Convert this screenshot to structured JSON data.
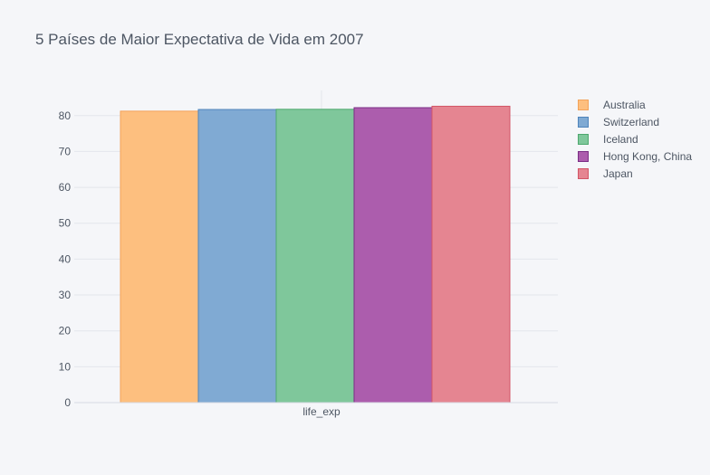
{
  "chart_data": {
    "type": "bar",
    "title": "5 Países de Maior Expectativa de Vida em 2007",
    "categories": [
      "life_exp"
    ],
    "series": [
      {
        "name": "Australia",
        "values": [
          81.235
        ],
        "fill": "#fdbf7f",
        "stroke": "#f3a35a"
      },
      {
        "name": "Switzerland",
        "values": [
          81.701
        ],
        "fill": "#80aad3",
        "stroke": "#4f84bb"
      },
      {
        "name": "Iceland",
        "values": [
          81.757
        ],
        "fill": "#7fc79b",
        "stroke": "#4ea86f"
      },
      {
        "name": "Hong Kong, China",
        "values": [
          82.208
        ],
        "fill": "#ac5dad",
        "stroke": "#7b2e85"
      },
      {
        "name": "Japan",
        "values": [
          82.603
        ],
        "fill": "#e58591",
        "stroke": "#d25566"
      }
    ],
    "ylim": [
      0,
      87
    ],
    "yticks": [
      "0",
      "10",
      "20",
      "30",
      "40",
      "50",
      "60",
      "70",
      "80"
    ],
    "xlabel": "",
    "ylabel": "",
    "grid": true,
    "legend_position": "right"
  }
}
